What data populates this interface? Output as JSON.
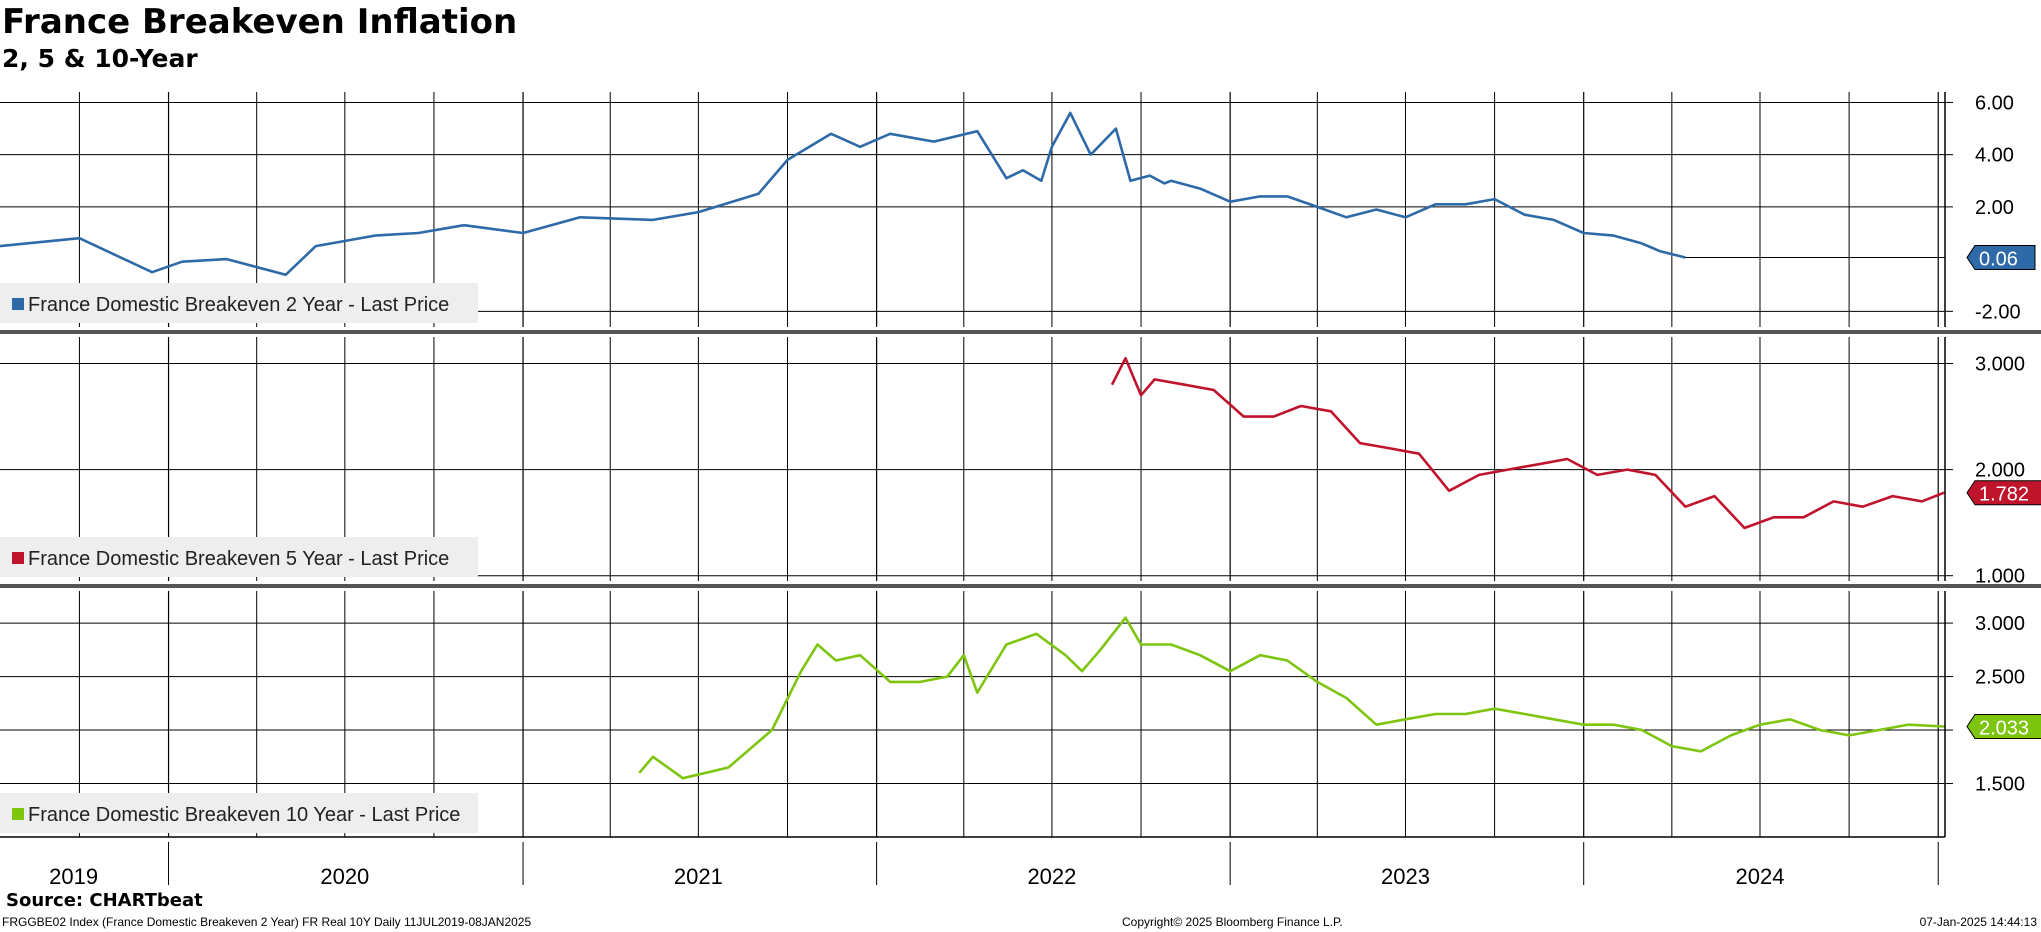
{
  "title": "France Breakeven Inflation",
  "subtitle": "2, 5 & 10-Year",
  "source": "Source: CHARTbeat",
  "footer": {
    "left": "FRGGBE02 Index (France Domestic Breakeven 2 Year) FR Real 10Y  Daily 11JUL2019-08JAN2025",
    "center": "Copyright© 2025 Bloomberg Finance L.P.",
    "right": "07-Jan-2025 14:44:13"
  },
  "chart_data": {
    "type": "line",
    "x_tick_labels": [
      "2019",
      "2020",
      "2021",
      "2022",
      "2023",
      "2024"
    ],
    "x_range": [
      "2019-07-11",
      "2025-01-08"
    ],
    "grid": true,
    "legend_placement": "bottom-left",
    "panels": [
      {
        "series_name": "France Domestic Breakeven 2 Year - Last Price",
        "color": "#2e6aa8",
        "last_value_label": "0.06",
        "ylim": [
          -2.6,
          6.4
        ],
        "y_ticks": [
          -2,
          2,
          4,
          6
        ],
        "y_tick_labels": [
          "-2.00",
          "2.00",
          "4.00",
          "6.00"
        ],
        "x": [
          "2019-07-11",
          "2019-10-01",
          "2019-12-15",
          "2020-01-15",
          "2020-03-01",
          "2020-05-01",
          "2020-06-01",
          "2020-08-01",
          "2020-09-15",
          "2020-11-01",
          "2021-01-01",
          "2021-03-01",
          "2021-05-15",
          "2021-07-01",
          "2021-09-01",
          "2021-10-01",
          "2021-11-15",
          "2021-12-15",
          "2022-01-15",
          "2022-03-01",
          "2022-04-15",
          "2022-05-15",
          "2022-06-01",
          "2022-06-20",
          "2022-07-01",
          "2022-07-20",
          "2022-08-10",
          "2022-09-05",
          "2022-09-20",
          "2022-10-10",
          "2022-10-25",
          "2022-11-01",
          "2022-12-01",
          "2023-01-01",
          "2023-02-01",
          "2023-03-01",
          "2023-04-01",
          "2023-05-01",
          "2023-06-01",
          "2023-07-01",
          "2023-08-01",
          "2023-09-01",
          "2023-10-01",
          "2023-11-01",
          "2023-12-01",
          "2024-01-01",
          "2024-02-01",
          "2024-03-01",
          "2024-03-20",
          "2024-04-15"
        ],
        "y": [
          0.5,
          0.8,
          -0.5,
          -0.1,
          0.0,
          -0.6,
          0.5,
          0.9,
          1.0,
          1.3,
          1.0,
          1.6,
          1.5,
          1.8,
          2.5,
          3.8,
          4.8,
          4.3,
          4.8,
          4.5,
          4.9,
          3.1,
          3.4,
          3.0,
          4.3,
          5.6,
          4.0,
          5.0,
          3.0,
          3.2,
          2.9,
          3.0,
          2.7,
          2.2,
          2.4,
          2.4,
          2.0,
          1.6,
          1.9,
          1.6,
          2.1,
          2.1,
          2.3,
          1.7,
          1.5,
          1.0,
          0.9,
          0.6,
          0.3,
          0.06
        ]
      },
      {
        "series_name": "France Domestic Breakeven 5 Year - Last Price",
        "color": "#c0142d",
        "last_value_label": "1.782",
        "ylim": [
          0.95,
          3.25
        ],
        "y_ticks": [
          1.0,
          2.0,
          3.0
        ],
        "y_tick_labels": [
          "1.000",
          "2.000",
          "3.000"
        ],
        "x": [
          "2022-09-01",
          "2022-09-15",
          "2022-10-01",
          "2022-10-15",
          "2022-11-15",
          "2022-12-15",
          "2023-01-15",
          "2023-02-15",
          "2023-03-15",
          "2023-04-15",
          "2023-05-15",
          "2023-06-15",
          "2023-07-15",
          "2023-08-15",
          "2023-09-15",
          "2023-10-15",
          "2023-11-15",
          "2023-12-15",
          "2024-01-15",
          "2024-02-15",
          "2024-03-15",
          "2024-04-15",
          "2024-05-15",
          "2024-06-15",
          "2024-07-15",
          "2024-08-15",
          "2024-09-15",
          "2024-10-15",
          "2024-11-15",
          "2024-12-15",
          "2025-01-07"
        ],
        "y": [
          2.8,
          3.05,
          2.7,
          2.85,
          2.8,
          2.75,
          2.5,
          2.5,
          2.6,
          2.55,
          2.25,
          2.2,
          2.15,
          1.8,
          1.95,
          2.0,
          2.05,
          2.1,
          1.95,
          2.0,
          1.95,
          1.65,
          1.75,
          1.45,
          1.55,
          1.55,
          1.7,
          1.65,
          1.75,
          1.7,
          1.782
        ]
      },
      {
        "series_name": "France Domestic Breakeven 10 Year - Last Price",
        "color": "#7dc50f",
        "last_value_label": "2.033",
        "ylim": [
          1.0,
          3.3
        ],
        "y_ticks": [
          1.5,
          2.0,
          2.5,
          3.0
        ],
        "y_tick_labels": [
          "1.500",
          "2.000",
          "2.500",
          "3.000"
        ],
        "x": [
          "2021-05-01",
          "2021-05-15",
          "2021-06-15",
          "2021-08-01",
          "2021-09-15",
          "2021-10-15",
          "2021-11-01",
          "2021-11-20",
          "2021-12-15",
          "2022-01-15",
          "2022-02-15",
          "2022-03-15",
          "2022-04-01",
          "2022-04-15",
          "2022-05-15",
          "2022-06-15",
          "2022-07-15",
          "2022-08-01",
          "2022-08-20",
          "2022-09-15",
          "2022-10-01",
          "2022-11-01",
          "2022-12-01",
          "2023-01-01",
          "2023-02-01",
          "2023-03-01",
          "2023-04-01",
          "2023-05-01",
          "2023-06-01",
          "2023-07-01",
          "2023-08-01",
          "2023-09-01",
          "2023-10-01",
          "2023-11-01",
          "2023-12-01",
          "2024-01-01",
          "2024-02-01",
          "2024-03-01",
          "2024-04-01",
          "2024-05-01",
          "2024-06-01",
          "2024-07-01",
          "2024-08-01",
          "2024-09-01",
          "2024-10-01",
          "2024-11-01",
          "2024-12-01",
          "2025-01-07"
        ],
        "y": [
          1.6,
          1.75,
          1.55,
          1.65,
          2.0,
          2.55,
          2.8,
          2.65,
          2.7,
          2.45,
          2.45,
          2.5,
          2.7,
          2.35,
          2.8,
          2.9,
          2.7,
          2.55,
          2.75,
          3.05,
          2.8,
          2.8,
          2.7,
          2.55,
          2.7,
          2.65,
          2.45,
          2.3,
          2.05,
          2.1,
          2.15,
          2.15,
          2.2,
          2.15,
          2.1,
          2.05,
          2.05,
          2.0,
          1.85,
          1.8,
          1.95,
          2.05,
          2.1,
          2.0,
          1.95,
          2.0,
          2.05,
          2.033
        ]
      }
    ]
  }
}
